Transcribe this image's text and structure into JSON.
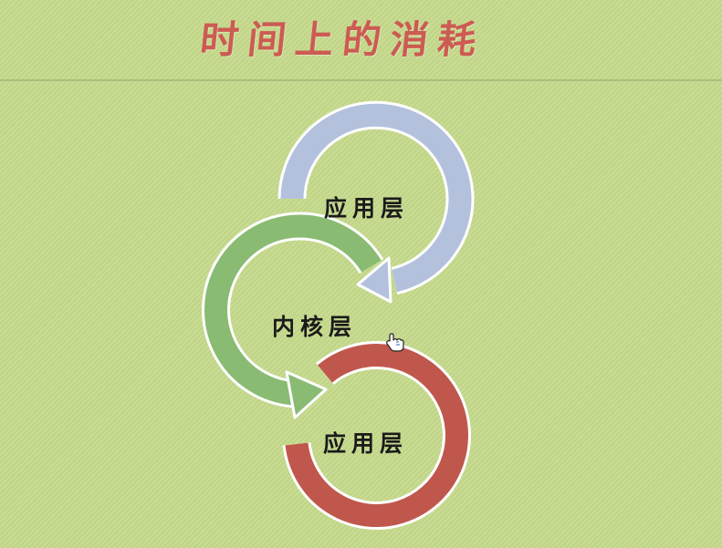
{
  "slide": {
    "title": "时间上的消耗"
  },
  "diagram": {
    "layers": [
      {
        "label": "应用层",
        "color": "#b3c1dd"
      },
      {
        "label": "内核层",
        "color": "#89bb72"
      },
      {
        "label": "应用层",
        "color": "#c0574c"
      }
    ],
    "outline_color": "#ffffff"
  },
  "cursor": {
    "icon": "hand-pointer-icon"
  }
}
